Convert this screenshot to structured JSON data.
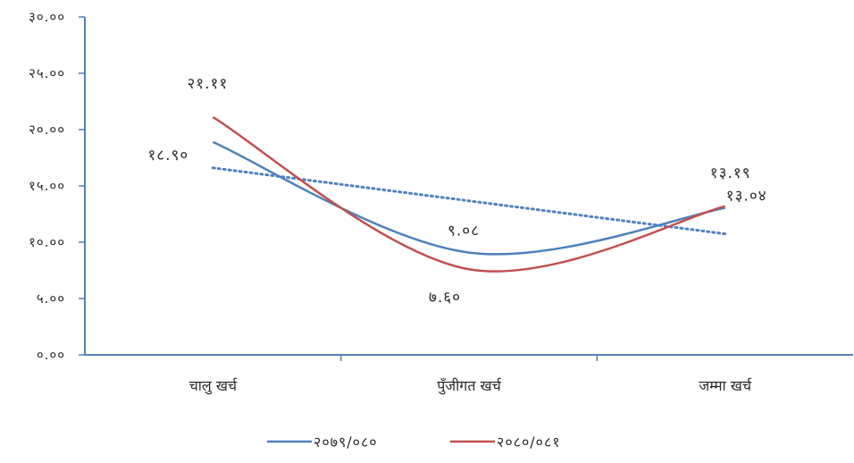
{
  "chart_data": {
    "type": "line",
    "categories": [
      "चालु खर्च",
      "पुँजीगत खर्च",
      "जम्मा खर्च"
    ],
    "ylim": [
      0,
      30
    ],
    "y_ticks": [
      "०.००",
      "५.००",
      "१०.००",
      "१५.००",
      "२०.००",
      "२५.००",
      "३०.००"
    ],
    "y_tick_values": [
      0,
      5,
      10,
      15,
      20,
      25,
      30
    ],
    "series": [
      {
        "name": "२०७९/०८०",
        "color": "#4f81bd",
        "values": [
          18.9,
          9.08,
          13.04
        ],
        "labels": [
          "१८.९०",
          "९.०८",
          "१३.०४"
        ]
      },
      {
        "name": "२०८०/०८१",
        "color": "#c0504d",
        "values": [
          21.11,
          7.6,
          13.19
        ],
        "labels": [
          "२१.११",
          "७.६०",
          "१३.१९"
        ]
      }
    ],
    "trendline": {
      "series": "२०७९/०८०",
      "type": "linear",
      "style": "dotted",
      "color": "#4f81bd"
    },
    "grid": false,
    "legend_position": "bottom"
  }
}
